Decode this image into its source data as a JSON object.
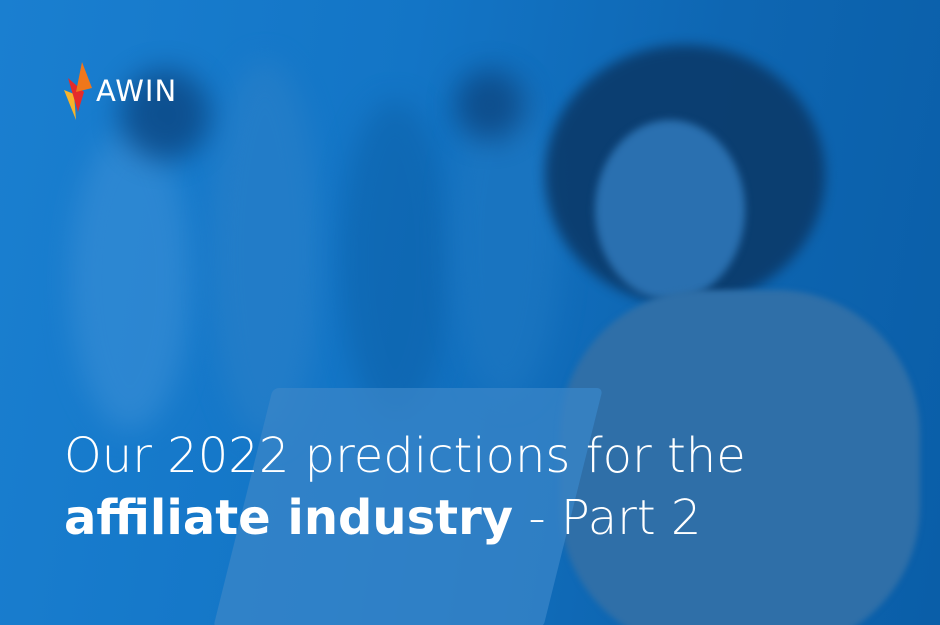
{
  "logo": {
    "text": "AWIN",
    "icon": "awin-flame-icon",
    "flame_colors": [
      "#f7b32b",
      "#e52b2b",
      "#f0771b"
    ]
  },
  "headline": {
    "line1": "Our 2022 predictions for the",
    "line2_bold": "affiliate industry",
    "line2_rest": " - Part 2"
  },
  "colors": {
    "background": "#1375c6",
    "text": "#ffffff"
  }
}
